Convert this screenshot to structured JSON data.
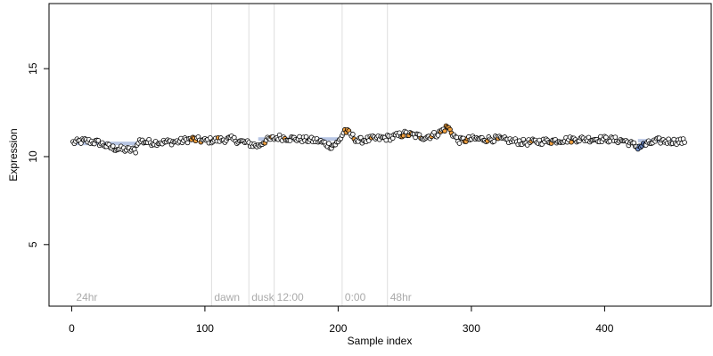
{
  "chart_data": {
    "type": "scatter",
    "title": "",
    "xlabel": "Sample index",
    "ylabel": "Expression",
    "xlim": [
      -17,
      480
    ],
    "ylim": [
      1.5,
      18.7
    ],
    "xticks": [
      0,
      100,
      200,
      300,
      400
    ],
    "yticks": [
      5,
      10,
      15
    ],
    "n_points": 460,
    "colors": {
      "default_fill": "#ffffff",
      "highlight_fill": "#f0a040",
      "low_fill": "#7090d0",
      "point_stroke": "#000000",
      "band": "#b8c6e4",
      "marker_line": "#dddddd",
      "marker_label": "#aaaaaa",
      "axis": "#000000"
    },
    "anchors": [
      [
        1,
        10.8
      ],
      [
        10,
        10.9
      ],
      [
        20,
        10.8
      ],
      [
        30,
        10.5
      ],
      [
        40,
        10.4
      ],
      [
        48,
        10.35
      ],
      [
        50,
        10.9
      ],
      [
        60,
        10.8
      ],
      [
        80,
        10.85
      ],
      [
        90,
        11.0
      ],
      [
        100,
        10.9
      ],
      [
        110,
        10.95
      ],
      [
        120,
        11.0
      ],
      [
        130,
        10.8
      ],
      [
        140,
        10.6
      ],
      [
        145,
        10.9
      ],
      [
        155,
        11.1
      ],
      [
        170,
        11.0
      ],
      [
        185,
        10.9
      ],
      [
        195,
        10.6
      ],
      [
        200,
        10.8
      ],
      [
        205,
        11.5
      ],
      [
        215,
        10.9
      ],
      [
        225,
        11.0
      ],
      [
        240,
        11.1
      ],
      [
        250,
        11.3
      ],
      [
        265,
        11.1
      ],
      [
        275,
        11.3
      ],
      [
        282,
        11.7
      ],
      [
        290,
        10.9
      ],
      [
        300,
        11.0
      ],
      [
        320,
        11.0
      ],
      [
        340,
        10.8
      ],
      [
        360,
        10.9
      ],
      [
        380,
        11.0
      ],
      [
        400,
        11.0
      ],
      [
        415,
        10.9
      ],
      [
        425,
        10.55
      ],
      [
        440,
        10.9
      ],
      [
        460,
        10.85
      ]
    ],
    "wiggle": 0.17,
    "bands": [
      {
        "x_start": 1,
        "x_end": 50,
        "y": 10.75
      },
      {
        "x_start": 140,
        "x_end": 200,
        "y": 11.0
      },
      {
        "x_start": 425,
        "x_end": 460,
        "y": 10.9
      }
    ],
    "highlight_x": [
      90,
      91,
      92,
      93,
      97,
      110,
      145,
      150,
      160,
      205,
      206,
      207,
      208,
      212,
      225,
      248,
      249,
      253,
      255,
      262,
      270,
      277,
      280,
      281,
      282,
      283,
      284,
      285,
      295,
      296,
      297,
      312,
      320,
      345,
      360,
      375
    ],
    "low_x": [
      425,
      426,
      427,
      428,
      429,
      430
    ],
    "markers": [
      {
        "x": 105,
        "label": "dawn"
      },
      {
        "x": 133,
        "label": "dusk"
      },
      {
        "x": 152,
        "label": "12:00"
      },
      {
        "x": 203,
        "label": "0:00"
      },
      {
        "x": 237,
        "label": "48hr"
      }
    ],
    "corner_label": {
      "x": 2,
      "label": "24hr"
    }
  }
}
